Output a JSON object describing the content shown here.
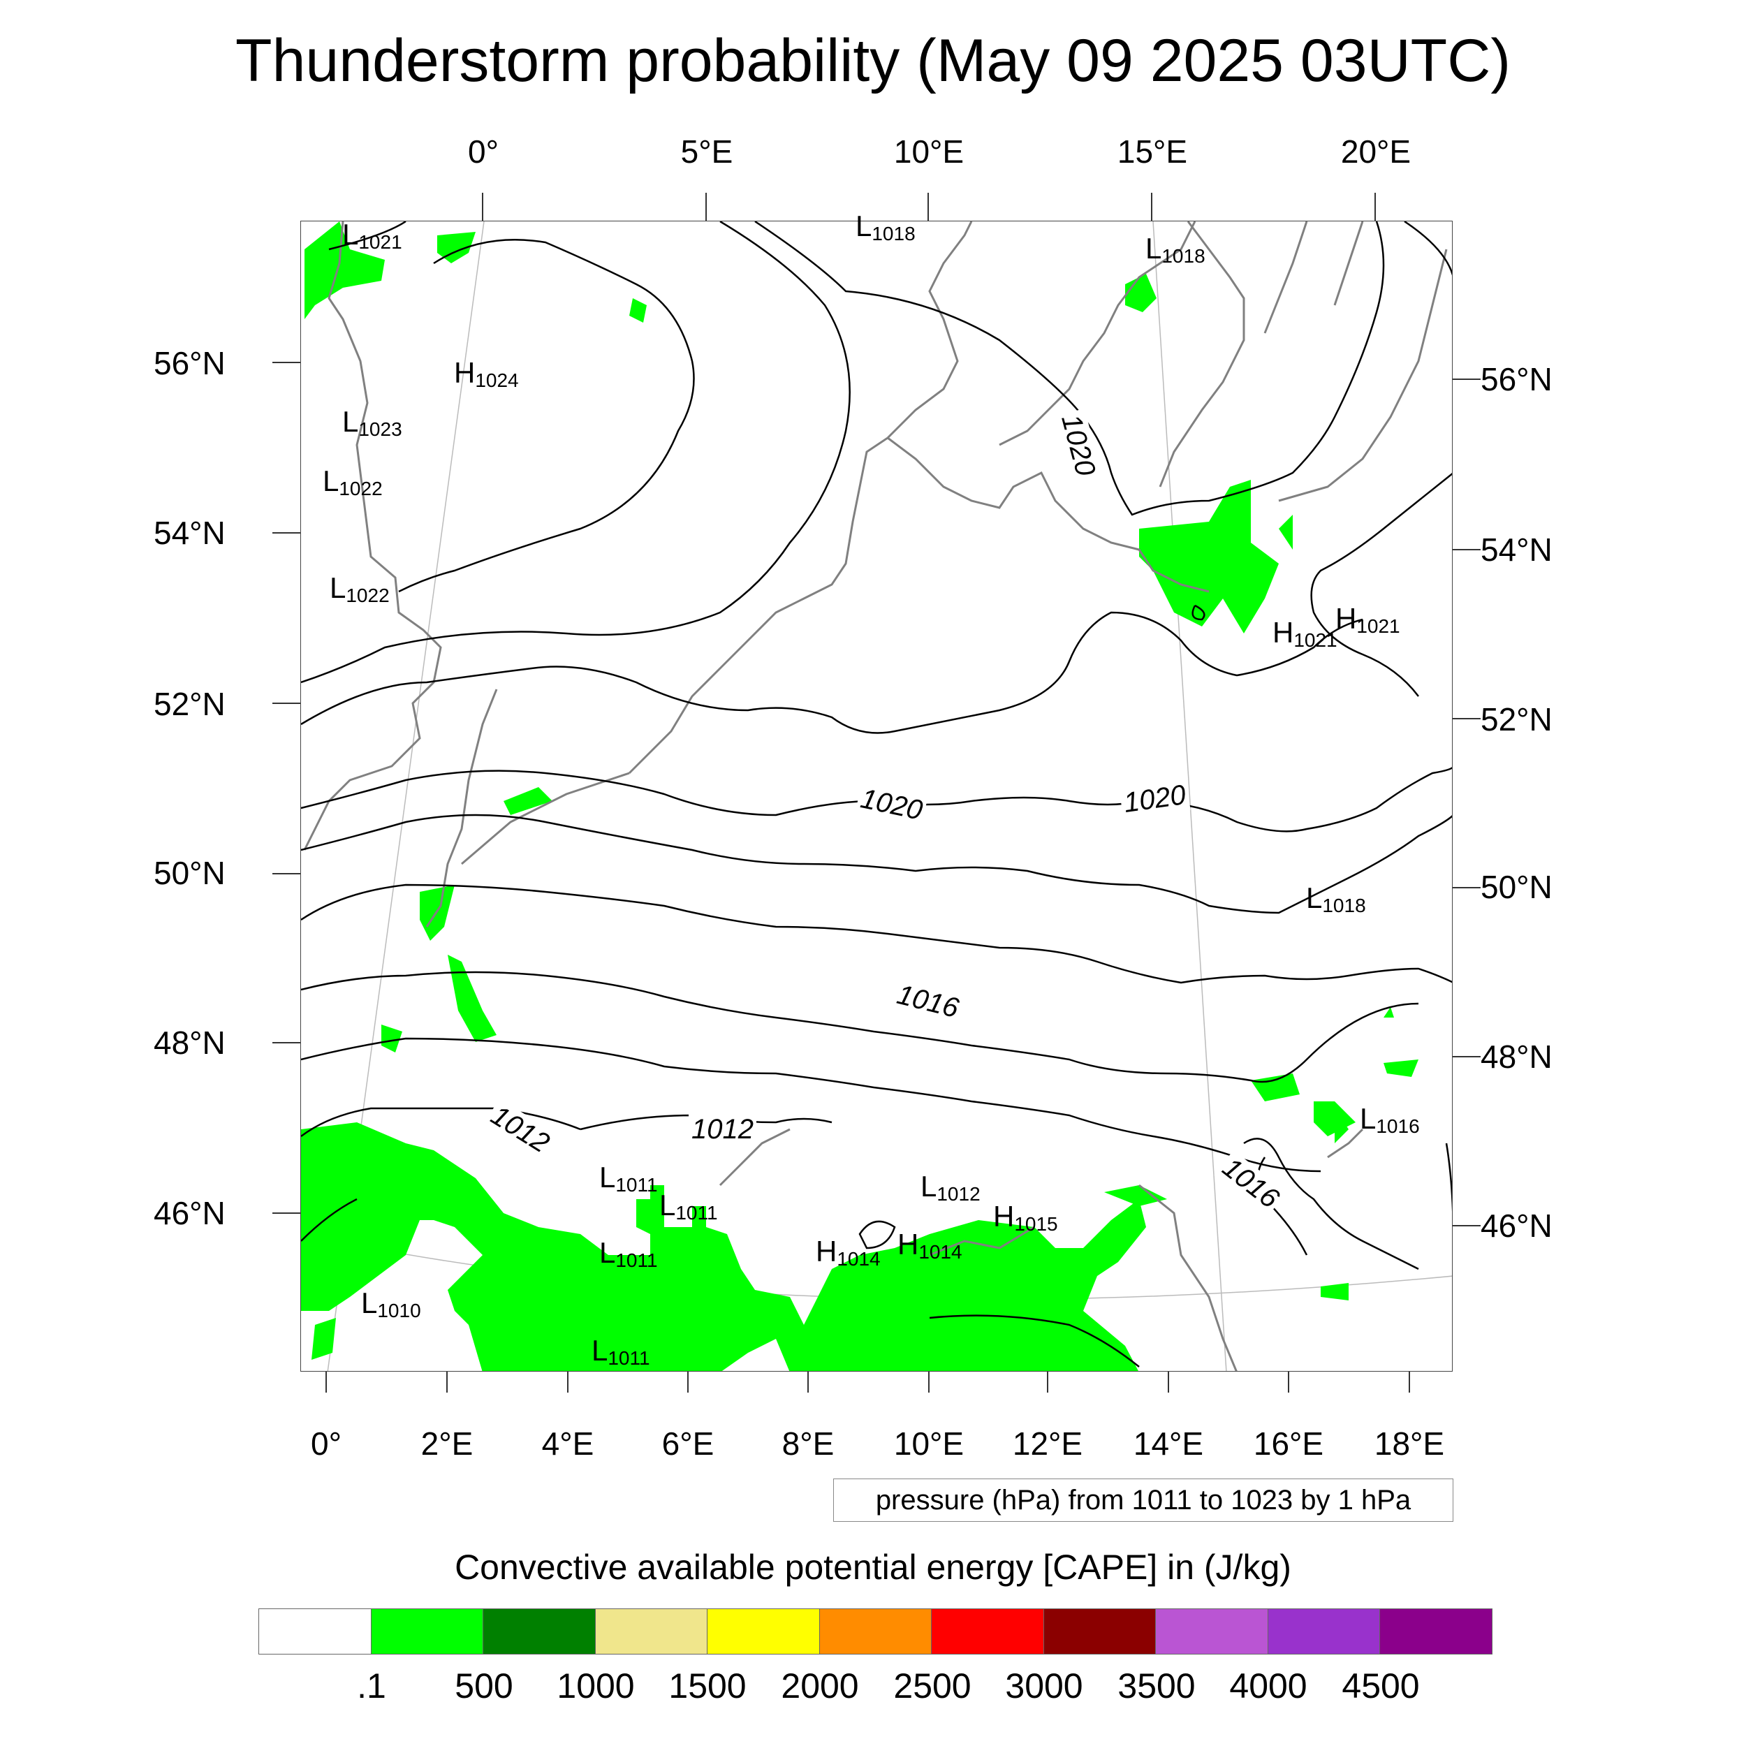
{
  "title": "Thunderstorm probability (May 09 2025 03UTC)",
  "map": {
    "top_lon_labels": [
      "0°",
      "5°E",
      "10°E",
      "15°E",
      "20°E"
    ],
    "bottom_lon_labels": [
      "0°",
      "2°E",
      "4°E",
      "6°E",
      "8°E",
      "10°E",
      "12°E",
      "14°E",
      "16°E",
      "18°E"
    ],
    "left_lat_labels": [
      "56°N",
      "54°N",
      "52°N",
      "50°N",
      "48°N",
      "46°N"
    ],
    "right_lat_labels": [
      "56°N",
      "54°N",
      "52°N",
      "50°N",
      "48°N",
      "46°N"
    ],
    "pressure_markers": [
      {
        "kind": "L",
        "value": "1021"
      },
      {
        "kind": "L",
        "value": "1018"
      },
      {
        "kind": "L",
        "value": "1018"
      },
      {
        "kind": "H",
        "value": "1024"
      },
      {
        "kind": "L",
        "value": "1023"
      },
      {
        "kind": "L",
        "value": "1022"
      },
      {
        "kind": "L",
        "value": "1022"
      },
      {
        "kind": "H",
        "value": "1021"
      },
      {
        "kind": "H",
        "value": "1021"
      },
      {
        "kind": "L",
        "value": "1018"
      },
      {
        "kind": "L",
        "value": "1016"
      },
      {
        "kind": "L",
        "value": "1011"
      },
      {
        "kind": "L",
        "value": "1011"
      },
      {
        "kind": "L",
        "value": "1011"
      },
      {
        "kind": "L",
        "value": "1012"
      },
      {
        "kind": "H",
        "value": "1015"
      },
      {
        "kind": "H",
        "value": "1014"
      },
      {
        "kind": "H",
        "value": "1014"
      },
      {
        "kind": "L",
        "value": "1010"
      },
      {
        "kind": "L",
        "value": "1011"
      }
    ],
    "contour_labels": [
      "1020",
      "1020",
      "1020",
      "1016",
      "1012",
      "1012",
      "1016"
    ],
    "colors": {
      "cape_fill": "#00ff00",
      "contour": "#000000",
      "coast": "#808080"
    }
  },
  "info_box": "pressure (hPa) from 1011 to 1023 by 1 hPa",
  "legend": {
    "title": "Convective available potential energy [CAPE] in (J/kg)",
    "colors": [
      "#ffffff",
      "#00ff00",
      "#008000",
      "#f0e68c",
      "#ffff00",
      "#ff8c00",
      "#ff0000",
      "#8b0000",
      "#ba55d3",
      "#9932cc",
      "#8b008b"
    ],
    "labels": [
      ".1",
      "500",
      "1000",
      "1500",
      "2000",
      "2500",
      "3000",
      "3500",
      "4000",
      "4500"
    ]
  }
}
